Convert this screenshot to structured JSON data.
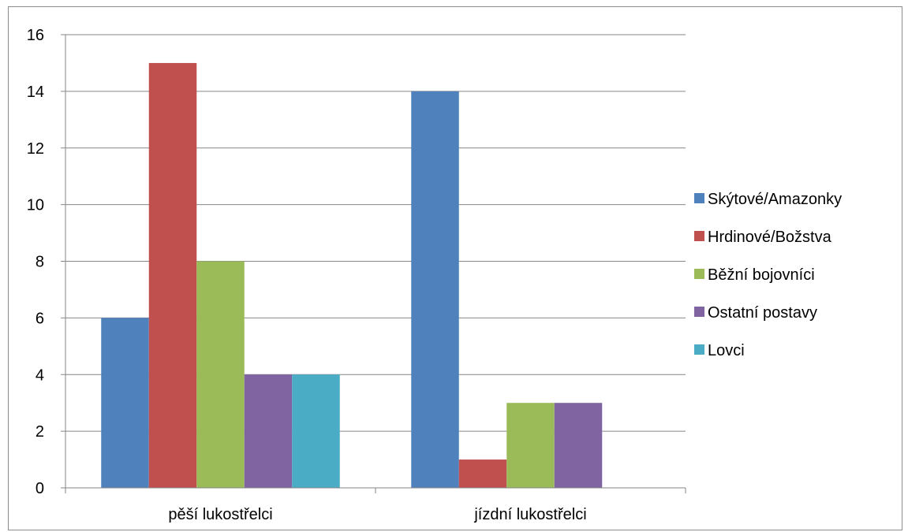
{
  "chart_data": {
    "type": "bar",
    "title": "",
    "xlabel": "",
    "ylabel": "",
    "ylim": [
      0,
      16
    ],
    "yticks": [
      0,
      2,
      4,
      6,
      8,
      10,
      12,
      14,
      16
    ],
    "grid": true,
    "legend_position": "right",
    "categories": [
      "pěší lukostřelci",
      "jízdní lukostřelci"
    ],
    "series": [
      {
        "name": "Skýtové/Amazonky",
        "color": "#4f81bd",
        "values": [
          6,
          14
        ]
      },
      {
        "name": "Hrdinové/Božstva",
        "color": "#c0504d",
        "values": [
          15,
          1
        ]
      },
      {
        "name": "Běžní bojovníci",
        "color": "#9bbb59",
        "values": [
          8,
          3
        ]
      },
      {
        "name": "Ostatní postavy",
        "color": "#8064a2",
        "values": [
          4,
          3
        ]
      },
      {
        "name": "Lovci",
        "color": "#4bacc6",
        "values": [
          4,
          0
        ]
      }
    ]
  }
}
